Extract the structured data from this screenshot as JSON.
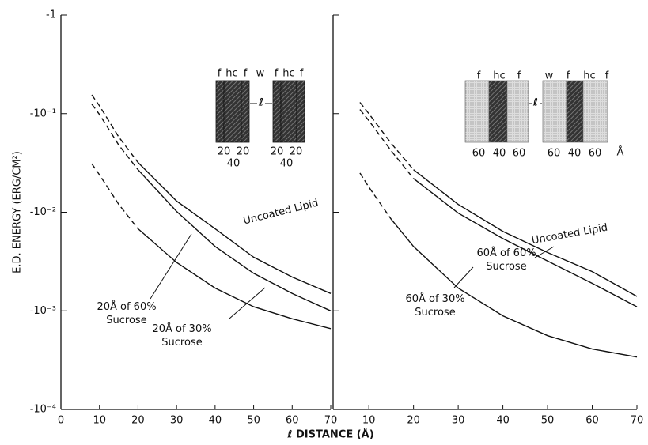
{
  "chart_data": [
    {
      "type": "line",
      "log_y": true,
      "ylabel": "E.D. ENERGY (ERG/CM²)",
      "xlabel": "ℓ DISTANCE (Å)",
      "xlim": [
        0,
        70
      ],
      "xticks": [
        0,
        10,
        20,
        30,
        40,
        50,
        60,
        70
      ],
      "ylim": [
        -0.0001,
        -1
      ],
      "yticks": [
        -1,
        {
          "value": -0.1,
          "label": "-10⁻¹"
        },
        {
          "value": -0.01,
          "label": "-10⁻²"
        },
        {
          "value": -0.001,
          "label": "-10⁻³"
        },
        {
          "value": -0.0001,
          "label": "-10⁻⁴"
        }
      ],
      "show_ytick_labels": true,
      "x": [
        8,
        10,
        15,
        20,
        30,
        40,
        50,
        60,
        70
      ],
      "series": [
        {
          "name": "Uncoated Lipid",
          "color": "#111111",
          "values": [
            null,
            null,
            null,
            -0.032,
            -0.013,
            -0.0068,
            -0.0035,
            -0.0022,
            -0.0015
          ],
          "dashed_values": [
            -0.155,
            -0.12,
            -0.058,
            -0.032,
            null,
            null,
            null,
            null,
            null
          ]
        },
        {
          "name": "20Å of 60% Sucrose",
          "color": "#111111",
          "values": [
            null,
            null,
            null,
            -0.027,
            -0.0102,
            -0.0045,
            -0.0024,
            -0.0015,
            -0.001
          ],
          "dashed_values": [
            -0.125,
            -0.098,
            -0.048,
            -0.027,
            null,
            null,
            null,
            null,
            null
          ]
        },
        {
          "name": "20Å of 30% Sucrose",
          "color": "#111111",
          "values": [
            null,
            null,
            null,
            -0.0068,
            -0.0031,
            -0.0017,
            -0.0011,
            -0.00083,
            -0.00066
          ],
          "dashed_values": [
            -0.031,
            -0.024,
            -0.012,
            -0.0068,
            null,
            null,
            null,
            null,
            null
          ]
        }
      ],
      "inset": {
        "layers": [
          "f",
          "hc",
          "f",
          "w",
          "f",
          "hc",
          "f"
        ],
        "gap": "ℓ",
        "thickness": [
          "20",
          "20",
          "20",
          "20"
        ],
        "totals": [
          "40",
          "40"
        ]
      }
    },
    {
      "type": "line",
      "log_y": true,
      "xlim": [
        2,
        70
      ],
      "xticks": [
        10,
        20,
        30,
        40,
        50,
        60,
        70
      ],
      "ylim": [
        -0.0001,
        -1
      ],
      "yticks": [
        -1,
        -0.1,
        -0.01,
        -0.001,
        -0.0001
      ],
      "show_ytick_labels": false,
      "x": [
        8,
        10,
        15,
        20,
        30,
        40,
        50,
        60,
        70
      ],
      "series": [
        {
          "name": "Uncoated Lipid",
          "color": "#111111",
          "values": [
            null,
            null,
            null,
            -0.027,
            -0.012,
            -0.0064,
            -0.0039,
            -0.0025,
            -0.0014
          ],
          "dashed_values": [
            -0.13,
            -0.1,
            -0.05,
            -0.027,
            null,
            null,
            null,
            null,
            null
          ]
        },
        {
          "name": "60Å of 60% Sucrose",
          "color": "#111111",
          "values": [
            null,
            null,
            null,
            -0.022,
            -0.0098,
            -0.0054,
            -0.0032,
            -0.0019,
            -0.0011
          ],
          "dashed_values": [
            -0.11,
            -0.085,
            -0.042,
            -0.022,
            null,
            null,
            null,
            null,
            null
          ]
        },
        {
          "name": "60Å of 30% Sucrose",
          "color": "#111111",
          "values": [
            null,
            null,
            -0.0085,
            -0.0045,
            -0.0017,
            -0.00089,
            -0.00056,
            -0.00041,
            -0.00034
          ],
          "dashed_values": [
            -0.025,
            -0.018,
            -0.0085,
            null,
            null,
            null,
            null,
            null,
            null
          ]
        }
      ],
      "inset": {
        "layers": [
          "f",
          "hc",
          "f",
          "w",
          "f",
          "hc",
          "f"
        ],
        "gap": "ℓ",
        "thickness": [
          "60",
          "40",
          "60",
          "60",
          "40",
          "60"
        ],
        "unit": "Å"
      }
    }
  ]
}
